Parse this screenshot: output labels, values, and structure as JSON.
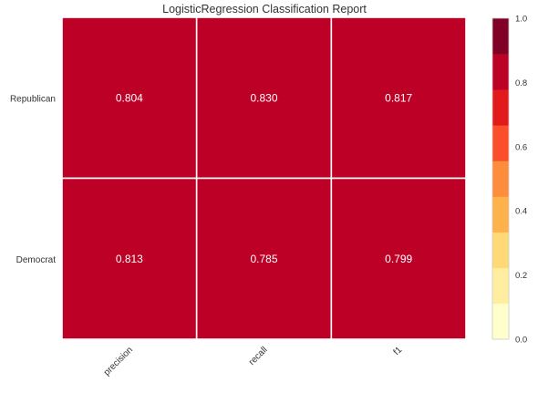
{
  "chart_data": {
    "type": "heatmap",
    "title": "LogisticRegression Classification Report",
    "rows": [
      "Republican",
      "Democrat"
    ],
    "columns": [
      "precision",
      "recall",
      "f1"
    ],
    "values": [
      [
        0.804,
        0.83,
        0.817
      ],
      [
        0.813,
        0.785,
        0.799
      ]
    ],
    "value_labels": [
      [
        "0.804",
        "0.830",
        "0.817"
      ],
      [
        "0.813",
        "0.785",
        "0.799"
      ]
    ],
    "colorbar": {
      "range": [
        0.0,
        1.0
      ],
      "ticks": [
        0.0,
        0.2,
        0.4,
        0.6,
        0.8,
        1.0
      ],
      "tick_labels": [
        "0.0",
        "0.2",
        "0.4",
        "0.6",
        "0.8",
        "1.0"
      ],
      "colors": [
        "#ffffcc",
        "#ffeda0",
        "#fed976",
        "#feb24c",
        "#fd8d3c",
        "#fc4e2a",
        "#e31a1c",
        "#bd0026",
        "#800026"
      ]
    },
    "cell_color": "#bd0026",
    "grid": true,
    "legend": "colorbar-right"
  }
}
